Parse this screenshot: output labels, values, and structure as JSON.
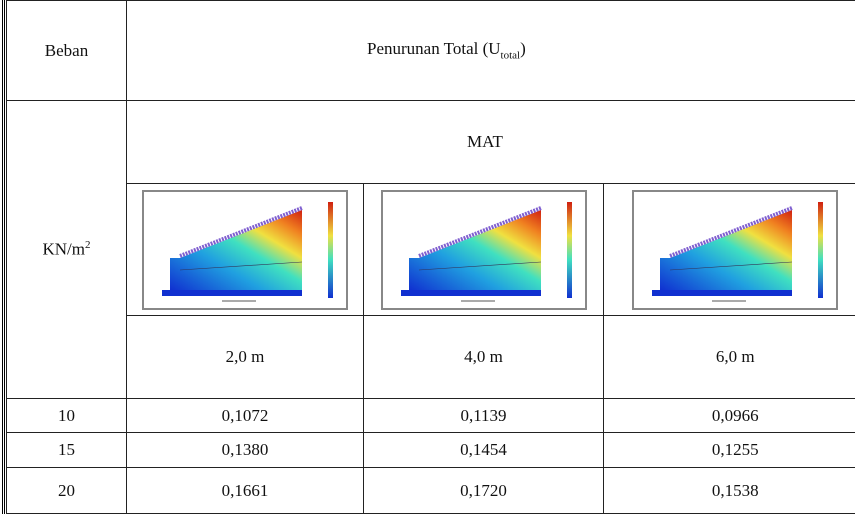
{
  "table": {
    "header": {
      "beban": "Beban",
      "title": {
        "text": "Penurunan Total (U",
        "sub": "total",
        "close": ")"
      }
    },
    "group": "MAT",
    "unit": {
      "text": "KN/m",
      "sup": "2"
    },
    "depths": [
      "2,0 m",
      "4,0 m",
      "6,0 m"
    ],
    "rows": [
      [
        "10",
        "0,1072",
        "0,1139",
        "0,0966"
      ],
      [
        "15",
        "0,1380",
        "0,1454",
        "0,1255"
      ],
      [
        "20",
        "0,1661",
        "0,1720",
        "0,1538"
      ]
    ]
  }
}
